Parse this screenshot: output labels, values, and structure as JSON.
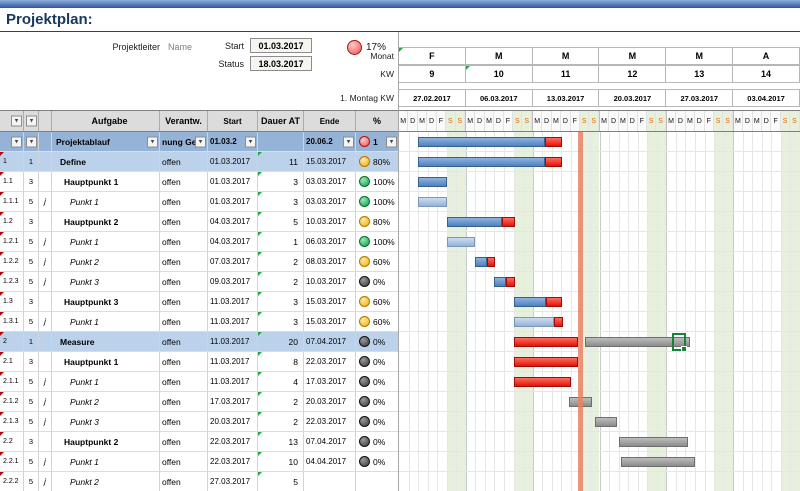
{
  "header": {
    "title": "Projektplan:",
    "fields": [
      {
        "label": "Projektleiter",
        "value": "Name"
      },
      {
        "label": "Start",
        "value": "01.03.2017"
      },
      {
        "label": "Status",
        "value": "18.03.2017"
      }
    ],
    "progress": {
      "value": "17%",
      "color": "red"
    },
    "axis_labels": {
      "monat": "Monat",
      "kw": "KW",
      "montag": "1. Montag KW"
    }
  },
  "timeline": {
    "day_count": 42,
    "months": [
      "F",
      "M",
      "M",
      "M",
      "M",
      "A"
    ],
    "weeks": [
      "9",
      "10",
      "11",
      "12",
      "13",
      "14"
    ],
    "week_dates": [
      "27.02.2017",
      "06.03.2017",
      "13.03.2017",
      "20.03.2017",
      "27.03.2017",
      "03.04.2017"
    ],
    "day_letters": [
      "M",
      "D",
      "M",
      "D",
      "F",
      "S",
      "S"
    ],
    "today_day": 19
  },
  "table": {
    "header": {
      "p": "P",
      "aufgabe": "Aufgabe",
      "verantw": "Verantw.",
      "start": "Start",
      "dauer": "Dauer AT",
      "ende": "Ende",
      "pct": "%"
    },
    "rows": [
      {
        "code": "",
        "b": "",
        "c": "",
        "task": "Projektablauf",
        "resp": "nung Ge",
        "start": "01.03.2",
        "dauer": "",
        "ende": "20.06.2",
        "pct": "1",
        "circle": "red",
        "type": "project"
      },
      {
        "code": "1",
        "b": "1",
        "c": "",
        "task": "Define",
        "resp": "offen",
        "start": "01.03.2017",
        "dauer": "11",
        "ende": "15.03.2017",
        "pct": "80%",
        "circle": "yellow",
        "type": "phase"
      },
      {
        "code": "1.1",
        "b": "3",
        "c": "",
        "task": "Hauptpunkt 1",
        "resp": "offen",
        "start": "01.03.2017",
        "dauer": "3",
        "ende": "03.03.2017",
        "pct": "100%",
        "circle": "green",
        "type": "main"
      },
      {
        "code": "1.1.1",
        "b": "5",
        "c": "j",
        "task": "Punkt 1",
        "resp": "offen",
        "start": "01.03.2017",
        "dauer": "3",
        "ende": "03.03.2017",
        "pct": "100%",
        "circle": "green",
        "type": "sub"
      },
      {
        "code": "1.2",
        "b": "3",
        "c": "",
        "task": "Hauptpunkt 2",
        "resp": "offen",
        "start": "04.03.2017",
        "dauer": "5",
        "ende": "10.03.2017",
        "pct": "80%",
        "circle": "yellow",
        "type": "main"
      },
      {
        "code": "1.2.1",
        "b": "5",
        "c": "j",
        "task": "Punkt 1",
        "resp": "offen",
        "start": "04.03.2017",
        "dauer": "1",
        "ende": "06.03.2017",
        "pct": "100%",
        "circle": "green",
        "type": "sub"
      },
      {
        "code": "1.2.2",
        "b": "5",
        "c": "j",
        "task": "Punkt 2",
        "resp": "offen",
        "start": "07.03.2017",
        "dauer": "2",
        "ende": "08.03.2017",
        "pct": "60%",
        "circle": "yellow",
        "type": "sub"
      },
      {
        "code": "1.2.3",
        "b": "5",
        "c": "j",
        "task": "Punkt 3",
        "resp": "offen",
        "start": "09.03.2017",
        "dauer": "2",
        "ende": "10.03.2017",
        "pct": "0%",
        "circle": "dark",
        "type": "sub"
      },
      {
        "code": "1.3",
        "b": "3",
        "c": "",
        "task": "Hauptpunkt 3",
        "resp": "offen",
        "start": "11.03.2017",
        "dauer": "3",
        "ende": "15.03.2017",
        "pct": "60%",
        "circle": "yellow",
        "type": "main"
      },
      {
        "code": "1.3.1",
        "b": "5",
        "c": "j",
        "task": "Punkt 1",
        "resp": "offen",
        "start": "11.03.2017",
        "dauer": "3",
        "ende": "15.03.2017",
        "pct": "60%",
        "circle": "yellow",
        "type": "sub"
      },
      {
        "code": "2",
        "b": "1",
        "c": "",
        "task": "Measure",
        "resp": "offen",
        "start": "11.03.2017",
        "dauer": "20",
        "ende": "07.04.2017",
        "pct": "0%",
        "circle": "dark",
        "type": "phase"
      },
      {
        "code": "2.1",
        "b": "3",
        "c": "",
        "task": "Hauptpunkt 1",
        "resp": "offen",
        "start": "11.03.2017",
        "dauer": "8",
        "ende": "22.03.2017",
        "pct": "0%",
        "circle": "dark",
        "type": "main"
      },
      {
        "code": "2.1.1",
        "b": "5",
        "c": "j",
        "task": "Punkt 1",
        "resp": "offen",
        "start": "11.03.2017",
        "dauer": "4",
        "ende": "17.03.2017",
        "pct": "0%",
        "circle": "dark",
        "type": "sub"
      },
      {
        "code": "2.1.2",
        "b": "5",
        "c": "j",
        "task": "Punkt 2",
        "resp": "offen",
        "start": "17.03.2017",
        "dauer": "2",
        "ende": "20.03.2017",
        "pct": "0%",
        "circle": "dark",
        "type": "sub"
      },
      {
        "code": "2.1.3",
        "b": "5",
        "c": "j",
        "task": "Punkt 3",
        "resp": "offen",
        "start": "20.03.2017",
        "dauer": "2",
        "ende": "22.03.2017",
        "pct": "0%",
        "circle": "dark",
        "type": "sub"
      },
      {
        "code": "2.2",
        "b": "3",
        "c": "",
        "task": "Hauptpunkt 2",
        "resp": "offen",
        "start": "22.03.2017",
        "dauer": "13",
        "ende": "07.04.2017",
        "pct": "0%",
        "circle": "dark",
        "type": "main"
      },
      {
        "code": "2.2.1",
        "b": "5",
        "c": "j",
        "task": "Punkt 1",
        "resp": "offen",
        "start": "22.03.2017",
        "dauer": "10",
        "ende": "04.04.2017",
        "pct": "0%",
        "circle": "dark",
        "type": "sub"
      },
      {
        "code": "2.2.2",
        "b": "5",
        "c": "j",
        "task": "Punkt 2",
        "resp": "offen",
        "start": "27.03.2017",
        "dauer": "5",
        "ende": "",
        "pct": "",
        "circle": "",
        "type": "sub"
      }
    ]
  },
  "gantt": {
    "cursor": {
      "day": 28.6,
      "row": 10
    },
    "bars": [
      [
        {
          "s": 2,
          "d": 13.3,
          "c": "blue"
        },
        {
          "s": 15.3,
          "d": 1.8,
          "c": "red"
        }
      ],
      [
        {
          "s": 2,
          "d": 13.3,
          "c": "blue"
        },
        {
          "s": 15.3,
          "d": 1.8,
          "c": "red"
        }
      ],
      [
        {
          "s": 2,
          "d": 3,
          "c": "blue"
        }
      ],
      [
        {
          "s": 2,
          "d": 3,
          "c": "lightblue"
        }
      ],
      [
        {
          "s": 5,
          "d": 5.8,
          "c": "blue"
        },
        {
          "s": 10.8,
          "d": 1.4,
          "c": "red"
        }
      ],
      [
        {
          "s": 5,
          "d": 3,
          "c": "lightblue"
        }
      ],
      [
        {
          "s": 8,
          "d": 1.2,
          "c": "blue"
        },
        {
          "s": 9.2,
          "d": 0.9,
          "c": "red"
        }
      ],
      [
        {
          "s": 10,
          "d": 1.2,
          "c": "blue"
        },
        {
          "s": 11.2,
          "d": 0.9,
          "c": "red"
        }
      ],
      [
        {
          "s": 12,
          "d": 3.4,
          "c": "blue"
        },
        {
          "s": 15.4,
          "d": 1.7,
          "c": "red"
        }
      ],
      [
        {
          "s": 12,
          "d": 4.2,
          "c": "lightblue"
        },
        {
          "s": 16.2,
          "d": 1,
          "c": "red"
        }
      ],
      [
        {
          "s": 12,
          "d": 6.8,
          "c": "red"
        },
        {
          "s": 19.5,
          "d": 11,
          "c": "gray"
        }
      ],
      [
        {
          "s": 12,
          "d": 6.8,
          "c": "red"
        }
      ],
      [
        {
          "s": 12,
          "d": 6,
          "c": "red"
        }
      ],
      [
        {
          "s": 17.8,
          "d": 2.4,
          "c": "gray"
        }
      ],
      [
        {
          "s": 20.5,
          "d": 2.3,
          "c": "gray"
        }
      ],
      [
        {
          "s": 23,
          "d": 7.3,
          "c": "gray"
        }
      ],
      [
        {
          "s": 23.2,
          "d": 7.8,
          "c": "gray"
        }
      ],
      []
    ]
  }
}
